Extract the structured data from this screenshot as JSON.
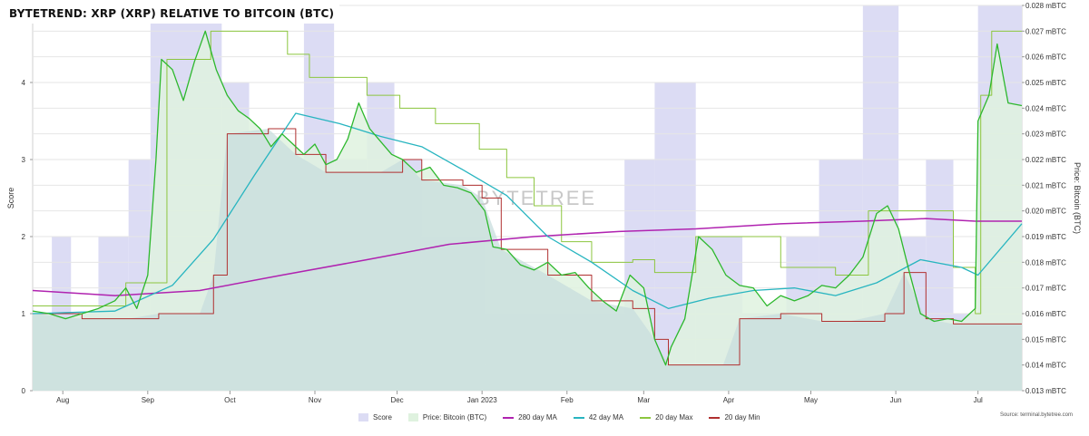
{
  "title": "BYTETREND: XRP (XRP) RELATIVE TO BITCOIN (BTC)",
  "watermark": "BYTETREE",
  "source": "Source: terminal.bytetree.com",
  "colors": {
    "score": "#dcdcf4",
    "price_fill": "#dff2df",
    "price_line": "#2db82d",
    "ma280": "#b023b0",
    "ma42": "#28b5c0",
    "max20": "#8cc63f",
    "min20": "#b03030",
    "overlap": "#c8dede",
    "grid": "#e6e6e6"
  },
  "chart_data": {
    "type": "line",
    "title": "BYTETREND: XRP (XRP) RELATIVE TO BITCOIN (BTC)",
    "xlabel": "",
    "x_ticks": [
      "Aug",
      "Sep",
      "Oct",
      "Nov",
      "Dec",
      "Jan 2023",
      "Feb",
      "Mar",
      "Apr",
      "May",
      "Jun",
      "Jul"
    ],
    "x_range": [
      "2022-07-21",
      "2023-07-17"
    ],
    "y_left": {
      "label": "Score",
      "ticks": [
        "0",
        "1",
        "2",
        "3",
        "4"
      ],
      "lim": [
        0,
        5
      ]
    },
    "y_right": {
      "label": "Price: Bitcoin (BTC)",
      "unit": "mBTC",
      "ticks": [
        "0.013 mBTC",
        "0.014 mBTC",
        "0.015 mBTC",
        "0.016 mBTC",
        "0.017 mBTC",
        "0.018 mBTC",
        "0.019 mBTC",
        "0.020 mBTC",
        "0.021 mBTC",
        "0.022 mBTC",
        "0.023 mBTC",
        "0.024 mBTC",
        "0.025 mBTC",
        "0.026 mBTC",
        "0.027 mBTC",
        "0.028 mBTC"
      ],
      "lim": [
        0.013,
        0.028
      ]
    },
    "legend": [
      "Score",
      "Price: Bitcoin (BTC)",
      "280 day MA",
      "42 day MA",
      "20 day Max",
      "20 day Min"
    ],
    "legend_position": "bottom",
    "score_steps": [
      {
        "date": "2022-07-21",
        "score": 1
      },
      {
        "date": "2022-07-28",
        "score": 2
      },
      {
        "date": "2022-08-04",
        "score": 1
      },
      {
        "date": "2022-08-14",
        "score": 2
      },
      {
        "date": "2022-08-25",
        "score": 3
      },
      {
        "date": "2022-09-02",
        "score": 5
      },
      {
        "date": "2022-09-28",
        "score": 4
      },
      {
        "date": "2022-10-08",
        "score": 3
      },
      {
        "date": "2022-10-28",
        "score": 5
      },
      {
        "date": "2022-11-08",
        "score": 3
      },
      {
        "date": "2022-11-20",
        "score": 4
      },
      {
        "date": "2022-11-30",
        "score": 3
      },
      {
        "date": "2022-12-10",
        "score": 2
      },
      {
        "date": "2022-12-31",
        "score": 2
      },
      {
        "date": "2023-01-02",
        "score": 1
      },
      {
        "date": "2023-01-30",
        "score": 1
      },
      {
        "date": "2023-02-22",
        "score": 3
      },
      {
        "date": "2023-03-05",
        "score": 4
      },
      {
        "date": "2023-03-20",
        "score": 2
      },
      {
        "date": "2023-04-06",
        "score": 1
      },
      {
        "date": "2023-04-22",
        "score": 2
      },
      {
        "date": "2023-05-04",
        "score": 3
      },
      {
        "date": "2023-05-20",
        "score": 5
      },
      {
        "date": "2023-06-02",
        "score": 2
      },
      {
        "date": "2023-06-12",
        "score": 3
      },
      {
        "date": "2023-06-22",
        "score": 1
      },
      {
        "date": "2023-07-01",
        "score": 5
      },
      {
        "date": "2023-07-17",
        "score": 5
      }
    ],
    "series": [
      {
        "name": "Price: Bitcoin (BTC)",
        "points": [
          [
            "2022-07-21",
            0.0161
          ],
          [
            "2022-07-27",
            0.016
          ],
          [
            "2022-08-02",
            0.0158
          ],
          [
            "2022-08-08",
            0.016
          ],
          [
            "2022-08-14",
            0.0162
          ],
          [
            "2022-08-20",
            0.0165
          ],
          [
            "2022-08-24",
            0.017
          ],
          [
            "2022-08-28",
            0.0162
          ],
          [
            "2022-09-01",
            0.0175
          ],
          [
            "2022-09-04",
            0.022
          ],
          [
            "2022-09-06",
            0.0259
          ],
          [
            "2022-09-10",
            0.0255
          ],
          [
            "2022-09-14",
            0.0243
          ],
          [
            "2022-09-18",
            0.0258
          ],
          [
            "2022-09-22",
            0.027
          ],
          [
            "2022-09-26",
            0.0255
          ],
          [
            "2022-09-30",
            0.0245
          ],
          [
            "2022-10-04",
            0.0239
          ],
          [
            "2022-10-08",
            0.0236
          ],
          [
            "2022-10-12",
            0.0232
          ],
          [
            "2022-10-16",
            0.0225
          ],
          [
            "2022-10-20",
            0.023
          ],
          [
            "2022-10-24",
            0.0226
          ],
          [
            "2022-10-28",
            0.0222
          ],
          [
            "2022-11-01",
            0.0226
          ],
          [
            "2022-11-05",
            0.0218
          ],
          [
            "2022-11-09",
            0.022
          ],
          [
            "2022-11-13",
            0.0228
          ],
          [
            "2022-11-17",
            0.0242
          ],
          [
            "2022-11-21",
            0.0232
          ],
          [
            "2022-11-25",
            0.0227
          ],
          [
            "2022-11-29",
            0.0222
          ],
          [
            "2022-12-03",
            0.022
          ],
          [
            "2022-12-08",
            0.0215
          ],
          [
            "2022-12-13",
            0.0217
          ],
          [
            "2022-12-18",
            0.021
          ],
          [
            "2022-12-23",
            0.0209
          ],
          [
            "2022-12-28",
            0.0207
          ],
          [
            "2023-01-02",
            0.02
          ],
          [
            "2023-01-05",
            0.0186
          ],
          [
            "2023-01-10",
            0.0185
          ],
          [
            "2023-01-15",
            0.0179
          ],
          [
            "2023-01-20",
            0.0177
          ],
          [
            "2023-01-25",
            0.018
          ],
          [
            "2023-01-30",
            0.0175
          ],
          [
            "2023-02-04",
            0.0176
          ],
          [
            "2023-02-09",
            0.017
          ],
          [
            "2023-02-14",
            0.0165
          ],
          [
            "2023-02-19",
            0.0161
          ],
          [
            "2023-02-24",
            0.0175
          ],
          [
            "2023-03-01",
            0.017
          ],
          [
            "2023-03-05",
            0.015
          ],
          [
            "2023-03-09",
            0.014
          ],
          [
            "2023-03-11",
            0.0147
          ],
          [
            "2023-03-16",
            0.0158
          ],
          [
            "2023-03-21",
            0.019
          ],
          [
            "2023-03-26",
            0.0185
          ],
          [
            "2023-03-31",
            0.0175
          ],
          [
            "2023-04-05",
            0.0171
          ],
          [
            "2023-04-10",
            0.017
          ],
          [
            "2023-04-15",
            0.0163
          ],
          [
            "2023-04-20",
            0.0167
          ],
          [
            "2023-04-25",
            0.0165
          ],
          [
            "2023-04-30",
            0.0167
          ],
          [
            "2023-05-05",
            0.0171
          ],
          [
            "2023-05-10",
            0.017
          ],
          [
            "2023-05-15",
            0.0175
          ],
          [
            "2023-05-20",
            0.0182
          ],
          [
            "2023-05-25",
            0.0199
          ],
          [
            "2023-05-29",
            0.0202
          ],
          [
            "2023-06-02",
            0.0193
          ],
          [
            "2023-06-06",
            0.0176
          ],
          [
            "2023-06-10",
            0.016
          ],
          [
            "2023-06-15",
            0.0157
          ],
          [
            "2023-06-20",
            0.0158
          ],
          [
            "2023-06-25",
            0.0157
          ],
          [
            "2023-06-30",
            0.0162
          ],
          [
            "2023-07-01",
            0.0235
          ],
          [
            "2023-07-05",
            0.0245
          ],
          [
            "2023-07-08",
            0.0265
          ],
          [
            "2023-07-12",
            0.0242
          ],
          [
            "2023-07-17",
            0.0241
          ]
        ]
      },
      {
        "name": "280 day MA",
        "points": [
          [
            "2022-07-21",
            0.0169
          ],
          [
            "2022-08-20",
            0.0167
          ],
          [
            "2022-09-20",
            0.0169
          ],
          [
            "2022-10-20",
            0.0175
          ],
          [
            "2022-11-20",
            0.0181
          ],
          [
            "2022-12-20",
            0.0187
          ],
          [
            "2023-01-20",
            0.019
          ],
          [
            "2023-02-20",
            0.0192
          ],
          [
            "2023-03-20",
            0.0193
          ],
          [
            "2023-04-20",
            0.0195
          ],
          [
            "2023-05-20",
            0.0196
          ],
          [
            "2023-06-12",
            0.0197
          ],
          [
            "2023-06-30",
            0.0196
          ],
          [
            "2023-07-17",
            0.0196
          ]
        ]
      },
      {
        "name": "42 day MA",
        "points": [
          [
            "2022-07-21",
            0.016
          ],
          [
            "2022-08-20",
            0.0161
          ],
          [
            "2022-09-10",
            0.0171
          ],
          [
            "2022-09-25",
            0.0189
          ],
          [
            "2022-10-10",
            0.0214
          ],
          [
            "2022-10-25",
            0.0238
          ],
          [
            "2022-11-10",
            0.0234
          ],
          [
            "2022-11-25",
            0.0229
          ],
          [
            "2022-12-10",
            0.0225
          ],
          [
            "2022-12-25",
            0.0216
          ],
          [
            "2023-01-10",
            0.0206
          ],
          [
            "2023-01-25",
            0.019
          ],
          [
            "2023-02-10",
            0.018
          ],
          [
            "2023-02-25",
            0.0169
          ],
          [
            "2023-03-10",
            0.0162
          ],
          [
            "2023-03-25",
            0.0166
          ],
          [
            "2023-04-10",
            0.0169
          ],
          [
            "2023-04-25",
            0.017
          ],
          [
            "2023-05-10",
            0.0167
          ],
          [
            "2023-05-25",
            0.0172
          ],
          [
            "2023-06-10",
            0.0181
          ],
          [
            "2023-06-25",
            0.0178
          ],
          [
            "2023-07-01",
            0.0175
          ],
          [
            "2023-07-17",
            0.0195
          ]
        ]
      },
      {
        "name": "20 day Max",
        "points": [
          [
            "2022-07-21",
            0.0163
          ],
          [
            "2022-08-08",
            0.0163
          ],
          [
            "2022-08-24",
            0.0172
          ],
          [
            "2022-09-06",
            0.0172
          ],
          [
            "2022-09-08",
            0.0259
          ],
          [
            "2022-09-22",
            0.0259
          ],
          [
            "2022-09-24",
            0.027
          ],
          [
            "2022-10-18",
            0.027
          ],
          [
            "2022-10-22",
            0.0261
          ],
          [
            "2022-10-30",
            0.0252
          ],
          [
            "2022-11-20",
            0.0245
          ],
          [
            "2022-12-02",
            0.024
          ],
          [
            "2022-12-15",
            0.0234
          ],
          [
            "2022-12-31",
            0.0224
          ],
          [
            "2023-01-10",
            0.0213
          ],
          [
            "2023-01-20",
            0.0202
          ],
          [
            "2023-01-30",
            0.0188
          ],
          [
            "2023-02-10",
            0.018
          ],
          [
            "2023-02-25",
            0.0181
          ],
          [
            "2023-03-05",
            0.0176
          ],
          [
            "2023-03-20",
            0.019
          ],
          [
            "2023-04-15",
            0.019
          ],
          [
            "2023-04-20",
            0.0178
          ],
          [
            "2023-05-10",
            0.0175
          ],
          [
            "2023-05-22",
            0.02
          ],
          [
            "2023-06-12",
            0.02
          ],
          [
            "2023-06-22",
            0.0178
          ],
          [
            "2023-06-30",
            0.016
          ],
          [
            "2023-07-02",
            0.0245
          ],
          [
            "2023-07-06",
            0.027
          ],
          [
            "2023-07-17",
            0.027
          ]
        ]
      },
      {
        "name": "20 day Min",
        "points": [
          [
            "2022-07-21",
            0.016
          ],
          [
            "2022-08-08",
            0.0158
          ],
          [
            "2022-08-25",
            0.0158
          ],
          [
            "2022-09-05",
            0.016
          ],
          [
            "2022-09-20",
            0.016
          ],
          [
            "2022-09-25",
            0.0175
          ],
          [
            "2022-09-30",
            0.023
          ],
          [
            "2022-10-15",
            0.0232
          ],
          [
            "2022-10-25",
            0.0222
          ],
          [
            "2022-11-05",
            0.0215
          ],
          [
            "2022-11-25",
            0.0215
          ],
          [
            "2022-12-03",
            0.022
          ],
          [
            "2022-12-10",
            0.0212
          ],
          [
            "2022-12-25",
            0.021
          ],
          [
            "2023-01-01",
            0.0205
          ],
          [
            "2023-01-08",
            0.0185
          ],
          [
            "2023-01-25",
            0.0175
          ],
          [
            "2023-02-10",
            0.0165
          ],
          [
            "2023-02-25",
            0.0162
          ],
          [
            "2023-03-05",
            0.015
          ],
          [
            "2023-03-10",
            0.014
          ],
          [
            "2023-03-30",
            0.014
          ],
          [
            "2023-04-05",
            0.0158
          ],
          [
            "2023-04-20",
            0.016
          ],
          [
            "2023-05-05",
            0.0157
          ],
          [
            "2023-05-15",
            0.0157
          ],
          [
            "2023-05-28",
            0.016
          ],
          [
            "2023-06-04",
            0.0176
          ],
          [
            "2023-06-12",
            0.0158
          ],
          [
            "2023-06-22",
            0.0156
          ],
          [
            "2023-07-17",
            0.0156
          ]
        ]
      }
    ]
  }
}
